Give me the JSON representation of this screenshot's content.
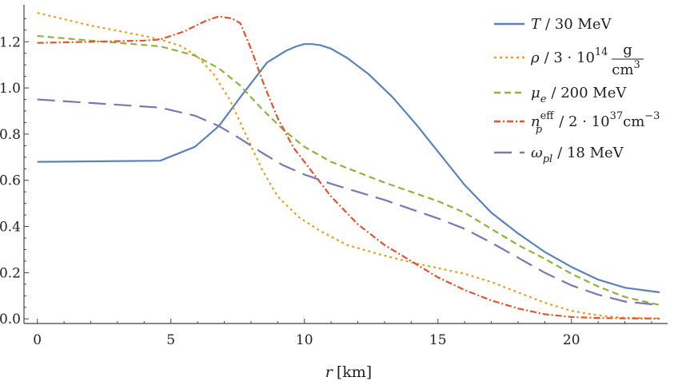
{
  "chart_data": {
    "type": "line",
    "title": "",
    "xlabel_var": "r",
    "xlabel_unit": "[km]",
    "ylabel": "",
    "xlim": [
      -0.5,
      23.6
    ],
    "ylim": [
      -0.02,
      1.36
    ],
    "x_ticks": [
      0,
      5,
      10,
      15,
      20
    ],
    "y_ticks": [
      0.0,
      0.2,
      0.4,
      0.6,
      0.8,
      1.0,
      1.2
    ],
    "x_tick_labels": [
      "0",
      "5",
      "10",
      "15",
      "20"
    ],
    "y_tick_labels": [
      "0.0",
      "0.2",
      "0.4",
      "0.6",
      "0.8",
      "1.0",
      "1.2"
    ],
    "grid": false,
    "legend_position": "top-right",
    "series": [
      {
        "name": "T / 30 MeV",
        "legend": {
          "sym": "T",
          "sub": "",
          "sup": "",
          "text": "/ 30 MeV"
        },
        "color": "#5B82B9",
        "dash": "",
        "x": [
          0,
          4.6,
          5.9,
          6.8,
          7.6,
          8.6,
          9.3,
          9.7,
          10.0,
          10.3,
          10.6,
          11.0,
          11.6,
          12.4,
          13.3,
          14.2,
          15.1,
          16.0,
          17.0,
          18.0,
          19.0,
          20.0,
          21.0,
          22.0,
          23.3
        ],
        "y": [
          0.68,
          0.685,
          0.745,
          0.835,
          0.96,
          1.11,
          1.16,
          1.18,
          1.19,
          1.19,
          1.185,
          1.17,
          1.13,
          1.06,
          0.96,
          0.84,
          0.71,
          0.58,
          0.46,
          0.37,
          0.29,
          0.225,
          0.17,
          0.135,
          0.115
        ]
      },
      {
        "name": "ρ / 3·10^14 g/cm^3",
        "legend": {
          "sym": "ρ",
          "sub": "",
          "sup": "",
          "text": "/ 3 · 10",
          "exp": "14",
          "frac_num": "g",
          "frac_den": "cm",
          "frac_den_sup": "3"
        },
        "color": "#E6A120",
        "dash": "3 4",
        "x": [
          0,
          2.0,
          4.0,
          4.6,
          5.4,
          6.0,
          6.6,
          7.2,
          7.8,
          8.4,
          9.0,
          9.8,
          10.6,
          11.6,
          12.8,
          14.0,
          15.0,
          16.0,
          17.0,
          18.0,
          19.0,
          20.0,
          21.0,
          22.0,
          23.3
        ],
        "y": [
          1.325,
          1.27,
          1.225,
          1.21,
          1.18,
          1.135,
          1.06,
          0.95,
          0.8,
          0.65,
          0.53,
          0.44,
          0.38,
          0.32,
          0.28,
          0.245,
          0.22,
          0.195,
          0.16,
          0.115,
          0.07,
          0.035,
          0.015,
          0.005,
          0.002
        ]
      },
      {
        "name": "μe / 200 MeV",
        "legend": {
          "sym": "μ",
          "sub": "e",
          "sup": "",
          "text": "/ 200 MeV"
        },
        "color": "#8DB33B",
        "dash": "8 5",
        "x": [
          0,
          2.0,
          4.6,
          5.9,
          6.8,
          7.6,
          8.4,
          9.2,
          10.0,
          11.0,
          12.0,
          13.0,
          14.0,
          15.0,
          16.0,
          17.0,
          18.0,
          19.0,
          20.0,
          21.0,
          22.0,
          23.3
        ],
        "y": [
          1.225,
          1.205,
          1.18,
          1.14,
          1.085,
          1.01,
          0.91,
          0.82,
          0.745,
          0.68,
          0.635,
          0.59,
          0.55,
          0.51,
          0.46,
          0.39,
          0.32,
          0.26,
          0.195,
          0.14,
          0.095,
          0.06
        ]
      },
      {
        "name": "n_p^eff / 2·10^37 cm^-3",
        "legend": {
          "sym": "n",
          "sub": "p",
          "sup": "eff",
          "text": "/ 2 · 10",
          "exp": "37",
          "unit": "cm",
          "unit_sup": "−3"
        },
        "color": "#E4522E",
        "dash": "8 3 2 3",
        "x": [
          0,
          2.0,
          4.0,
          4.6,
          5.5,
          6.3,
          6.8,
          7.3,
          7.6,
          8.0,
          8.5,
          9.0,
          9.6,
          10.2,
          11.0,
          12.0,
          13.0,
          14.0,
          15.0,
          16.0,
          17.0,
          18.0,
          19.0,
          20.0,
          21.0,
          22.0,
          23.3
        ],
        "y": [
          1.195,
          1.2,
          1.205,
          1.21,
          1.245,
          1.29,
          1.31,
          1.3,
          1.28,
          1.17,
          1.01,
          0.87,
          0.74,
          0.65,
          0.53,
          0.41,
          0.32,
          0.25,
          0.18,
          0.125,
          0.08,
          0.045,
          0.02,
          0.008,
          0.004,
          0.002,
          0.001
        ]
      },
      {
        "name": "ωpl / 18 MeV",
        "legend": {
          "sym": "ω",
          "sub": "pl",
          "sup": "",
          "text": "/ 18 MeV"
        },
        "color": "#7E75B2",
        "dash": "22 10",
        "x": [
          0,
          2.0,
          4.6,
          5.9,
          6.8,
          7.6,
          8.4,
          9.2,
          10.0,
          11.0,
          12.0,
          13.0,
          14.0,
          15.0,
          16.0,
          17.0,
          18.0,
          19.0,
          20.0,
          21.0,
          22.0,
          23.3
        ],
        "y": [
          0.95,
          0.935,
          0.915,
          0.88,
          0.835,
          0.78,
          0.72,
          0.665,
          0.625,
          0.585,
          0.55,
          0.515,
          0.475,
          0.435,
          0.39,
          0.33,
          0.265,
          0.2,
          0.145,
          0.105,
          0.075,
          0.06
        ]
      }
    ]
  }
}
